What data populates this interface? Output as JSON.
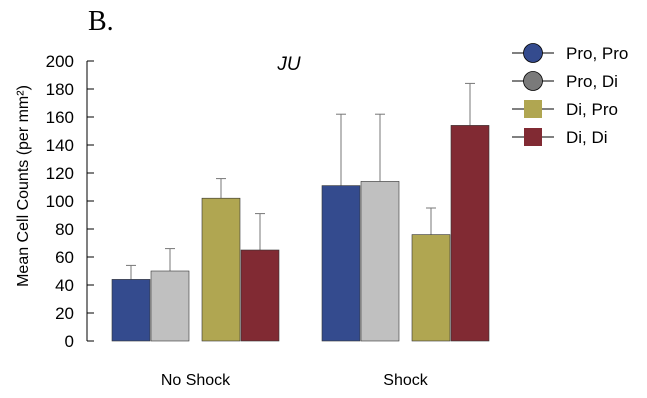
{
  "panel_label": "B.",
  "chart_data": {
    "type": "bar",
    "title": "JU",
    "ylabel": "Mean Cell Counts (per mm²)",
    "xlabel": "",
    "ylim": [
      0,
      200
    ],
    "yticks": [
      0,
      20,
      40,
      60,
      80,
      100,
      120,
      140,
      160,
      180,
      200
    ],
    "categories": [
      "No Shock",
      "Shock"
    ],
    "error_bars": "upper only",
    "legend_position": "right",
    "series": [
      {
        "name": "Pro, Pro",
        "color": "#344b8e",
        "marker": "circle",
        "values": [
          44,
          111
        ],
        "errors": [
          10,
          51
        ]
      },
      {
        "name": "Pro, Di",
        "color": "#c0c0c0",
        "marker": "circle",
        "marker_color": "#7a7a7a",
        "values": [
          50,
          114
        ],
        "errors": [
          16,
          48
        ]
      },
      {
        "name": "Di, Pro",
        "color": "#b0a651",
        "marker": "square",
        "values": [
          102,
          76
        ],
        "errors": [
          14,
          19
        ]
      },
      {
        "name": "Di, Di",
        "color": "#812a33",
        "marker": "square",
        "values": [
          65,
          154
        ],
        "errors": [
          26,
          30
        ]
      }
    ]
  }
}
